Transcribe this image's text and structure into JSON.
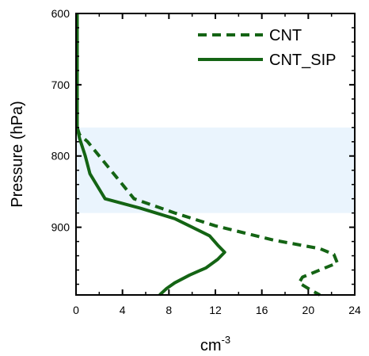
{
  "chart_data": {
    "type": "line",
    "title": "",
    "xlabel": "cm",
    "xlabel_superscript": "-3",
    "ylabel": "Pressure (hPa)",
    "xlim": [
      0,
      24
    ],
    "ylim": [
      600,
      995
    ],
    "y_inverted": true,
    "x_ticks": [
      "0",
      "4",
      "8",
      "12",
      "16",
      "20",
      "24"
    ],
    "y_ticks": [
      "600",
      "700",
      "800",
      "900"
    ],
    "shaded_band": {
      "y_from": 760,
      "y_to": 880,
      "color": "#eaf4fd"
    },
    "grid": false,
    "legend_position": "top-right",
    "series": [
      {
        "name": "CNT",
        "style": "dashed",
        "color": "#146414",
        "points": [
          [
            0.1,
            600
          ],
          [
            0.1,
            700
          ],
          [
            0.1,
            760
          ],
          [
            0.3,
            770
          ],
          [
            1.0,
            780
          ],
          [
            2.0,
            800
          ],
          [
            3.5,
            830
          ],
          [
            5.0,
            860
          ],
          [
            8.5,
            880
          ],
          [
            12.0,
            898
          ],
          [
            17.0,
            918
          ],
          [
            21.0,
            930
          ],
          [
            22.2,
            938
          ],
          [
            22.5,
            950
          ],
          [
            21.0,
            960
          ],
          [
            19.5,
            970
          ],
          [
            19.2,
            978
          ],
          [
            20.2,
            988
          ],
          [
            21.0,
            995
          ]
        ]
      },
      {
        "name": "CNT_SIP",
        "style": "solid",
        "color": "#146414",
        "points": [
          [
            0.1,
            600
          ],
          [
            0.1,
            700
          ],
          [
            0.1,
            760
          ],
          [
            0.3,
            775
          ],
          [
            0.8,
            800
          ],
          [
            1.2,
            825
          ],
          [
            2.5,
            860
          ],
          [
            5.5,
            873
          ],
          [
            8.5,
            888
          ],
          [
            10.0,
            900
          ],
          [
            11.5,
            912
          ],
          [
            12.2,
            925
          ],
          [
            12.8,
            935
          ],
          [
            12.2,
            945
          ],
          [
            11.2,
            957
          ],
          [
            9.8,
            967
          ],
          [
            8.5,
            978
          ],
          [
            7.8,
            986
          ],
          [
            7.2,
            995
          ]
        ]
      }
    ]
  }
}
